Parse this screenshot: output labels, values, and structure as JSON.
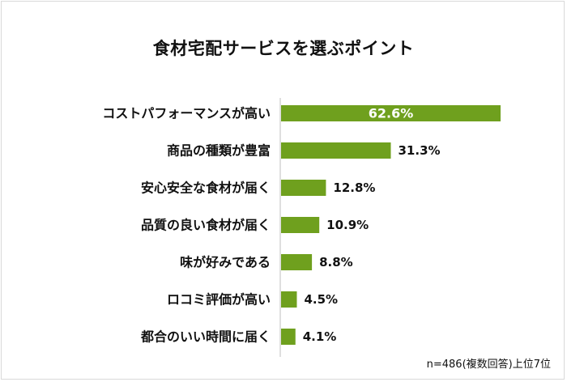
{
  "chart_data": {
    "type": "bar",
    "orientation": "horizontal",
    "title": "食材宅配サービスを選ぶポイント",
    "categories": [
      "コストパフォーマンスが高い",
      "商品の種類が豊富",
      "安心安全な食材が届く",
      "品質の良い食材が届く",
      "味が好みである",
      "ロコミ評価が高い",
      "都合のいい時間に届く"
    ],
    "values": [
      62.6,
      31.3,
      12.8,
      10.9,
      8.8,
      4.5,
      4.1
    ],
    "value_labels": [
      "62.6%",
      "31.3%",
      "12.8%",
      "10.9%",
      "8.8%",
      "4.5%",
      "4.1%"
    ],
    "unit": "%",
    "xlim": [
      0,
      62.6
    ],
    "bar_color": "#6fa01e",
    "grid": false,
    "legend": "none",
    "note": "n=486(複数回答)上位7位"
  }
}
